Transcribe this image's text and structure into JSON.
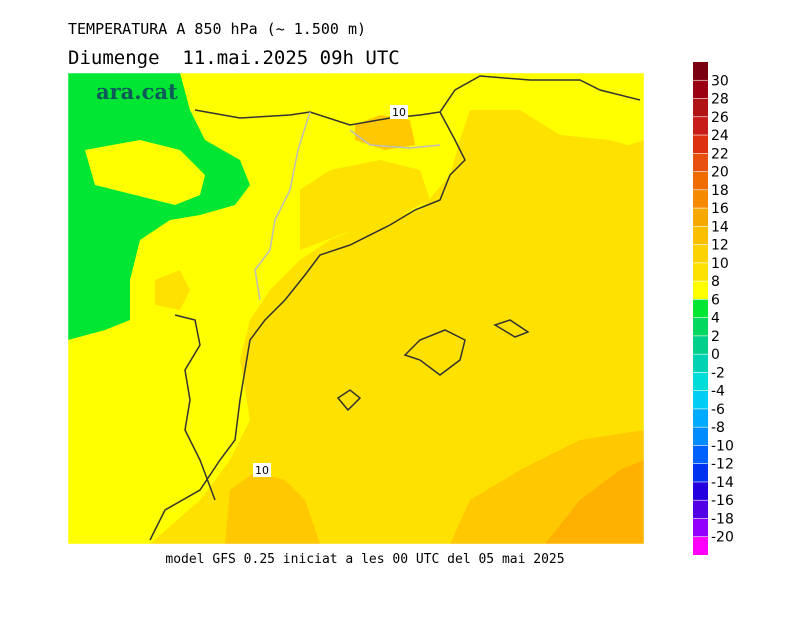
{
  "header": {
    "title": "TEMPERATURA A 850 hPa (~ 1.500 m)",
    "subtitle": "Diumenge  11.mai.2025 09h UTC"
  },
  "logo": "ara.cat",
  "map": {
    "contour_labels": [
      "10",
      "10"
    ]
  },
  "footer": "model GFS 0.25 iniciat a les 00 UTC del 05 mai 2025",
  "colorbar": {
    "ticks": [
      30,
      28,
      26,
      24,
      22,
      20,
      18,
      16,
      14,
      12,
      10,
      8,
      6,
      4,
      2,
      0,
      -2,
      -4,
      -6,
      -8,
      -10,
      -12,
      -14,
      -16,
      -18,
      -20
    ],
    "colors": [
      "#7a0010",
      "#9a0012",
      "#b01414",
      "#c81c18",
      "#dc3010",
      "#e85010",
      "#ef6c00",
      "#f58a00",
      "#f7a800",
      "#fac000",
      "#fcd200",
      "#ffe100",
      "#ffff00",
      "#00e632",
      "#00d860",
      "#00d08c",
      "#00d2b4",
      "#00dcd8",
      "#00ccf4",
      "#00aaff",
      "#008cff",
      "#0060ff",
      "#0030f0",
      "#2400e0",
      "#5200e6",
      "#9400ff",
      "#ff00ff"
    ]
  }
}
